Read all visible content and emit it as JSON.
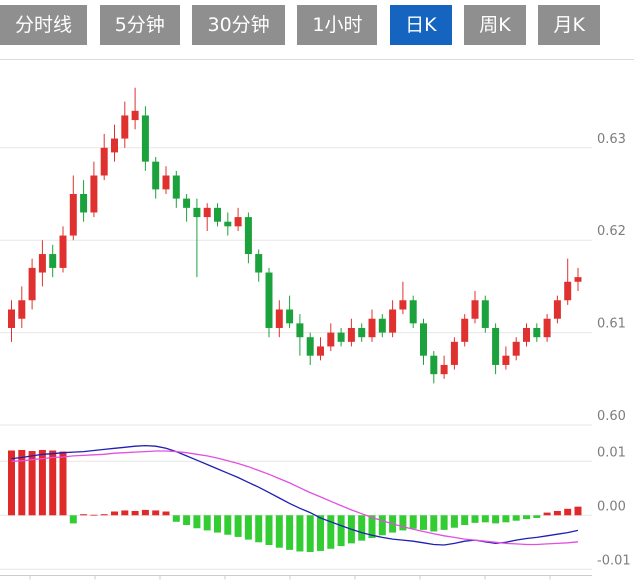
{
  "tabs": {
    "items": [
      {
        "label": "分时线",
        "active": false
      },
      {
        "label": "5分钟",
        "active": false
      },
      {
        "label": "30分钟",
        "active": false
      },
      {
        "label": "1小时",
        "active": false
      },
      {
        "label": "日K",
        "active": true
      },
      {
        "label": "周K",
        "active": false
      },
      {
        "label": "月K",
        "active": false
      }
    ],
    "active_bg": "#1565c0",
    "inactive_bg": "#8f8f8f",
    "text_color": "#ffffff"
  },
  "colors": {
    "up": "#e03131",
    "down": "#1ca23c",
    "macd_up": "#e02a2a",
    "macd_down": "#33cc33",
    "dif_line": "#1f1fb4",
    "dea_line": "#e24fe2",
    "grid": "#e7e7e7",
    "axis_line": "#cccccc",
    "axis_label": "#7d7d7d",
    "background": "#ffffff"
  },
  "chart_data": [
    {
      "type": "candlestick",
      "title": "",
      "candle_format": "[open, high, low, close]",
      "y_axis": {
        "labels": [
          "0.63",
          "0.62",
          "0.61",
          "0.60"
        ],
        "values": [
          0.63,
          0.62,
          0.61,
          0.6
        ],
        "range": [
          0.6,
          0.6395
        ],
        "position": "right",
        "grid": true
      },
      "candles": [
        [
          0.6105,
          0.6135,
          0.609,
          0.6125
        ],
        [
          0.6115,
          0.615,
          0.6105,
          0.6135
        ],
        [
          0.6135,
          0.618,
          0.6125,
          0.617
        ],
        [
          0.6165,
          0.62,
          0.615,
          0.6185
        ],
        [
          0.6185,
          0.6195,
          0.616,
          0.617
        ],
        [
          0.617,
          0.6215,
          0.6165,
          0.6205
        ],
        [
          0.6205,
          0.627,
          0.62,
          0.625
        ],
        [
          0.625,
          0.6265,
          0.622,
          0.623
        ],
        [
          0.623,
          0.6285,
          0.6225,
          0.627
        ],
        [
          0.627,
          0.6315,
          0.6265,
          0.63
        ],
        [
          0.6295,
          0.6325,
          0.6285,
          0.631
        ],
        [
          0.631,
          0.635,
          0.63,
          0.6335
        ],
        [
          0.633,
          0.6365,
          0.632,
          0.634
        ],
        [
          0.6335,
          0.6345,
          0.6275,
          0.6285
        ],
        [
          0.6285,
          0.629,
          0.6245,
          0.6255
        ],
        [
          0.6255,
          0.628,
          0.625,
          0.627
        ],
        [
          0.627,
          0.6275,
          0.6235,
          0.6245
        ],
        [
          0.6245,
          0.625,
          0.622,
          0.6235
        ],
        [
          0.6235,
          0.6245,
          0.616,
          0.6225
        ],
        [
          0.6225,
          0.624,
          0.621,
          0.6235
        ],
        [
          0.6235,
          0.624,
          0.6215,
          0.622
        ],
        [
          0.622,
          0.623,
          0.6205,
          0.6215
        ],
        [
          0.6215,
          0.6235,
          0.621,
          0.6225
        ],
        [
          0.6225,
          0.623,
          0.6175,
          0.6185
        ],
        [
          0.6185,
          0.619,
          0.6155,
          0.6165
        ],
        [
          0.6165,
          0.617,
          0.6095,
          0.6105
        ],
        [
          0.6105,
          0.6135,
          0.6095,
          0.6125
        ],
        [
          0.6125,
          0.614,
          0.6105,
          0.611
        ],
        [
          0.611,
          0.612,
          0.6075,
          0.6095
        ],
        [
          0.6095,
          0.61,
          0.6065,
          0.6075
        ],
        [
          0.6075,
          0.6095,
          0.607,
          0.6085
        ],
        [
          0.6085,
          0.611,
          0.608,
          0.61
        ],
        [
          0.61,
          0.6105,
          0.6085,
          0.609
        ],
        [
          0.609,
          0.6115,
          0.6085,
          0.6105
        ],
        [
          0.6105,
          0.611,
          0.609,
          0.6095
        ],
        [
          0.6095,
          0.6125,
          0.609,
          0.6115
        ],
        [
          0.6115,
          0.612,
          0.6095,
          0.61
        ],
        [
          0.61,
          0.6135,
          0.6095,
          0.6125
        ],
        [
          0.6125,
          0.6155,
          0.612,
          0.6135
        ],
        [
          0.6135,
          0.614,
          0.6105,
          0.611
        ],
        [
          0.611,
          0.6115,
          0.6065,
          0.6075
        ],
        [
          0.6075,
          0.608,
          0.6045,
          0.6055
        ],
        [
          0.6055,
          0.6075,
          0.605,
          0.6065
        ],
        [
          0.6065,
          0.6095,
          0.606,
          0.609
        ],
        [
          0.609,
          0.612,
          0.6085,
          0.6115
        ],
        [
          0.6115,
          0.6145,
          0.611,
          0.6135
        ],
        [
          0.6135,
          0.614,
          0.61,
          0.6105
        ],
        [
          0.6105,
          0.611,
          0.6055,
          0.6065
        ],
        [
          0.6065,
          0.6085,
          0.606,
          0.6075
        ],
        [
          0.6075,
          0.6095,
          0.607,
          0.609
        ],
        [
          0.609,
          0.611,
          0.6085,
          0.6105
        ],
        [
          0.6105,
          0.611,
          0.609,
          0.6095
        ],
        [
          0.6095,
          0.612,
          0.609,
          0.6115
        ],
        [
          0.6115,
          0.614,
          0.611,
          0.6135
        ],
        [
          0.6135,
          0.618,
          0.613,
          0.6155
        ],
        [
          0.6155,
          0.617,
          0.6145,
          0.616
        ]
      ]
    },
    {
      "type": "macd",
      "y_axis": {
        "labels": [
          "0.01",
          "0.00",
          "-0.01"
        ],
        "values": [
          0.01,
          0.0,
          -0.01
        ],
        "range": [
          -0.0105,
          0.0145
        ],
        "position": "right",
        "grid": true
      },
      "x_axis": {
        "tick_count": 9,
        "labels": []
      },
      "histogram": [
        0.012,
        0.0121,
        0.0119,
        0.0121,
        0.012,
        0.0118,
        -0.0015,
        0.0002,
        0.0001,
        0.0002,
        0.0007,
        0.0009,
        0.0008,
        0.001,
        0.0009,
        0.0007,
        -0.0012,
        -0.0018,
        -0.0024,
        -0.0028,
        -0.0032,
        -0.0036,
        -0.004,
        -0.0045,
        -0.005,
        -0.0055,
        -0.006,
        -0.0064,
        -0.0067,
        -0.0068,
        -0.0066,
        -0.0062,
        -0.0057,
        -0.0052,
        -0.0047,
        -0.0042,
        -0.0037,
        -0.0032,
        -0.0028,
        -0.0025,
        -0.0027,
        -0.003,
        -0.0027,
        -0.0023,
        -0.0018,
        -0.0014,
        -0.0013,
        -0.0015,
        -0.0013,
        -0.001,
        -0.0007,
        -0.0005,
        0.0005,
        0.0008,
        0.0012,
        0.0016
      ],
      "series": [
        {
          "name": "DIF",
          "values": [
            0.0105,
            0.0107,
            0.011,
            0.0113,
            0.0114,
            0.0116,
            0.0117,
            0.0118,
            0.012,
            0.0122,
            0.0124,
            0.0126,
            0.0128,
            0.0129,
            0.0128,
            0.0124,
            0.0118,
            0.011,
            0.0102,
            0.0094,
            0.0086,
            0.0078,
            0.007,
            0.0061,
            0.0052,
            0.0042,
            0.0032,
            0.0022,
            0.0013,
            0.0005,
            -0.0005,
            -0.0012,
            -0.0019,
            -0.0026,
            -0.0032,
            -0.0037,
            -0.0041,
            -0.0044,
            -0.0046,
            -0.0048,
            -0.0051,
            -0.0054,
            -0.0055,
            -0.0052,
            -0.0048,
            -0.0046,
            -0.0049,
            -0.0052,
            -0.005,
            -0.0046,
            -0.0043,
            -0.0041,
            -0.0038,
            -0.0035,
            -0.0032,
            -0.0028
          ]
        },
        {
          "name": "DEA",
          "values": [
            0.01,
            0.0101,
            0.0103,
            0.0105,
            0.0107,
            0.0108,
            0.011,
            0.0111,
            0.0112,
            0.0113,
            0.0115,
            0.0116,
            0.0117,
            0.0118,
            0.0119,
            0.0119,
            0.0118,
            0.0116,
            0.0113,
            0.011,
            0.0106,
            0.0101,
            0.0096,
            0.009,
            0.0083,
            0.0076,
            0.0068,
            0.006,
            0.0051,
            0.0042,
            0.0034,
            0.0026,
            0.0018,
            0.001,
            0.0003,
            -0.0004,
            -0.001,
            -0.0016,
            -0.0021,
            -0.0026,
            -0.003,
            -0.0034,
            -0.0038,
            -0.0041,
            -0.0044,
            -0.0046,
            -0.0048,
            -0.005,
            -0.0052,
            -0.0053,
            -0.0054,
            -0.0054,
            -0.0053,
            -0.0052,
            -0.0051,
            -0.0049
          ]
        }
      ]
    }
  ]
}
